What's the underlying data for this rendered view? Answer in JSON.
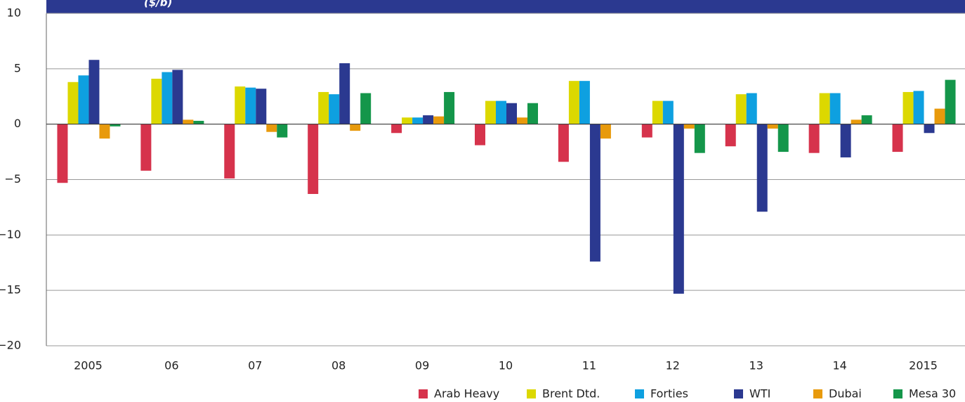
{
  "chart_data": {
    "type": "bar",
    "title": "($/b)",
    "categories": [
      "2005",
      "06",
      "07",
      "08",
      "09",
      "10",
      "11",
      "12",
      "13",
      "14",
      "2015"
    ],
    "series": [
      {
        "name": "Arab Heavy",
        "color": "#d6334c",
        "values": [
          -5.3,
          -4.2,
          -4.9,
          -6.3,
          -0.8,
          -1.9,
          -3.4,
          -1.2,
          -2.0,
          -2.6,
          -2.5
        ]
      },
      {
        "name": "Brent Dtd.",
        "color": "#dcd800",
        "values": [
          3.8,
          4.1,
          3.4,
          2.9,
          0.6,
          2.1,
          3.9,
          2.1,
          2.7,
          2.8,
          2.9
        ]
      },
      {
        "name": "Forties",
        "color": "#0ea0e0",
        "values": [
          4.4,
          4.7,
          3.3,
          2.7,
          0.6,
          2.1,
          3.9,
          2.1,
          2.8,
          2.8,
          3.0
        ]
      },
      {
        "name": "WTI",
        "color": "#2b3990",
        "values": [
          5.8,
          4.9,
          3.2,
          5.5,
          0.8,
          1.9,
          -12.4,
          -15.3,
          -7.9,
          -3.0,
          -0.8
        ]
      },
      {
        "name": "Dubai",
        "color": "#e89a0c",
        "values": [
          -1.3,
          0.4,
          -0.7,
          -0.6,
          0.7,
          0.6,
          -1.3,
          -0.4,
          -0.4,
          0.4,
          1.4
        ]
      },
      {
        "name": "Mesa 30",
        "color": "#14964a",
        "values": [
          -0.2,
          0.3,
          -1.2,
          2.8,
          2.9,
          1.9,
          0,
          -2.6,
          -2.5,
          0.8,
          4.0
        ]
      }
    ],
    "ylim": [
      -20,
      10
    ],
    "yticks": [
      {
        "value": -20,
        "label": "−20"
      },
      {
        "value": -15,
        "label": "−15"
      },
      {
        "value": -10,
        "label": "−10"
      },
      {
        "value": -5,
        "label": "−5"
      },
      0,
      5,
      10
    ],
    "grid": true,
    "legend": "bottom-right"
  }
}
